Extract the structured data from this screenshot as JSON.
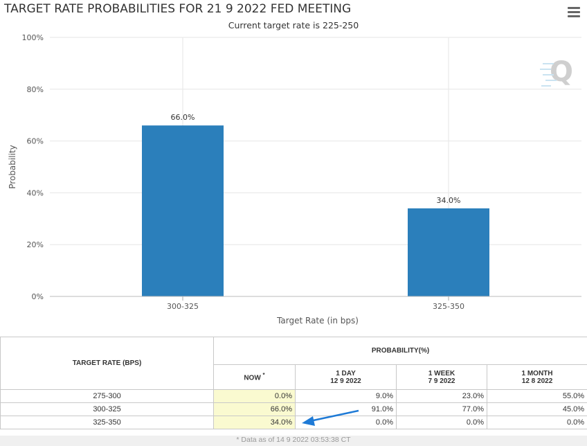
{
  "header": {
    "title": "TARGET RATE PROBABILITIES FOR 21 9 2022 FED MEETING",
    "subtitle": "Current target rate is 225-250",
    "menu_icon": "hamburger-menu-icon",
    "watermark_icon": "q-logo-icon"
  },
  "chart_data": {
    "type": "bar",
    "title": "TARGET RATE PROBABILITIES FOR 21 9 2022 FED MEETING",
    "subtitle": "Current target rate is 225-250",
    "categories": [
      "300-325",
      "325-350"
    ],
    "values": [
      66.0,
      34.0
    ],
    "data_labels": [
      "66.0%",
      "34.0%"
    ],
    "xlabel": "Target Rate (in bps)",
    "ylabel": "Probability",
    "ylim": [
      0,
      100
    ],
    "y_ticks": [
      0,
      20,
      40,
      60,
      80,
      100
    ],
    "y_tick_labels": [
      "0%",
      "20%",
      "40%",
      "60%",
      "80%",
      "100%"
    ],
    "grid": true,
    "bar_color": "#2b7fbb"
  },
  "table": {
    "col_target": "TARGET RATE (BPS)",
    "col_prob": "PROBABILITY(%)",
    "now": "NOW",
    "now_mark": "*",
    "day_label": "1 DAY",
    "day_date": "12 9 2022",
    "week_label": "1 WEEK",
    "week_date": "7 9 2022",
    "month_label": "1 MONTH",
    "month_date": "12 8 2022",
    "rows": [
      {
        "rate": "275-300",
        "now": "0.0%",
        "day": "9.0%",
        "week": "23.0%",
        "month": "55.0%"
      },
      {
        "rate": "300-325",
        "now": "66.0%",
        "day": "91.0%",
        "week": "77.0%",
        "month": "45.0%"
      },
      {
        "rate": "325-350",
        "now": "34.0%",
        "day": "0.0%",
        "week": "0.0%",
        "month": "0.0%"
      }
    ],
    "highlight_color": "#fafad0",
    "arrow_color": "#1e7ad6"
  },
  "footnote": "* Data as of 14 9 2022 03:53:38 CT"
}
